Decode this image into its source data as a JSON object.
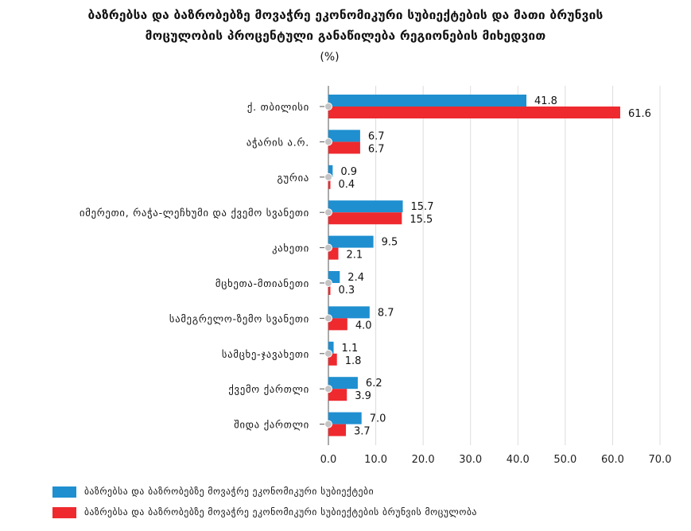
{
  "header": {
    "title_line1": "ბაზრებსა და ბაზრობებზე მოვაჭრე ეკონომიკური სუბიექტების და მათი ბრუნვის",
    "title_line2": "მოცულობის პროცენტული განაწილება რეგიონების მიხედვით",
    "unit": "(%)"
  },
  "colors": {
    "series1": "#1f8fd0",
    "series2": "#ee2a2f",
    "grid": "#dcdcdc",
    "axis": "#555555"
  },
  "chart_data": {
    "type": "bar",
    "orientation": "horizontal",
    "title": "ბაზრებსა და ბაზრობებზე მოვაჭრე ეკონომიკური სუბიექტების და მათი ბრუნვის მოცულობის პროცენტული განაწილება რეგიონების მიხედვით",
    "unit": "(%)",
    "categories": [
      "ქ. თბილისი",
      "აჭარის ა.რ.",
      "გურია",
      "იმერეთი, რაჭა-ლეჩხუმი და ქვემო სვანეთი",
      "კახეთი",
      "მცხეთა-მთიანეთი",
      "სამეგრელო-ზემო სვანეთი",
      "სამცხე-ჯავახეთი",
      "ქვემო ქართლი",
      "შიდა ქართლი"
    ],
    "series": [
      {
        "name": "ბაზრებსა და ბაზრობებზე მოვაჭრე ეკონომიკური სუბიექტები",
        "values": [
          41.8,
          6.7,
          0.9,
          15.7,
          9.5,
          2.4,
          8.7,
          1.1,
          6.2,
          7.0
        ]
      },
      {
        "name": "ბაზრებსა და ბაზრობებზე მოვაჭრე ეკონომიკური სუბიექტების ბრუნვის მოცულობა",
        "values": [
          61.6,
          6.7,
          0.4,
          15.5,
          2.1,
          0.3,
          4.0,
          1.8,
          3.9,
          3.7
        ]
      }
    ],
    "xlim": [
      0,
      70
    ],
    "xticks": [
      "0.0",
      "10.0",
      "20.0",
      "30.0",
      "40.0",
      "50.0",
      "60.0",
      "70.0"
    ],
    "value_labels": [
      [
        "41.8",
        "6.7",
        "0.9",
        "15.7",
        "9.5",
        "2.4",
        "8.7",
        "1.1",
        "6.2",
        "7.0"
      ],
      [
        "61.6",
        "6.7",
        "0.4",
        "15.5",
        "2.1",
        "0.3",
        "4.0",
        "1.8",
        "3.9",
        "3.7"
      ]
    ],
    "grid": true,
    "legend_position": "bottom-left"
  }
}
